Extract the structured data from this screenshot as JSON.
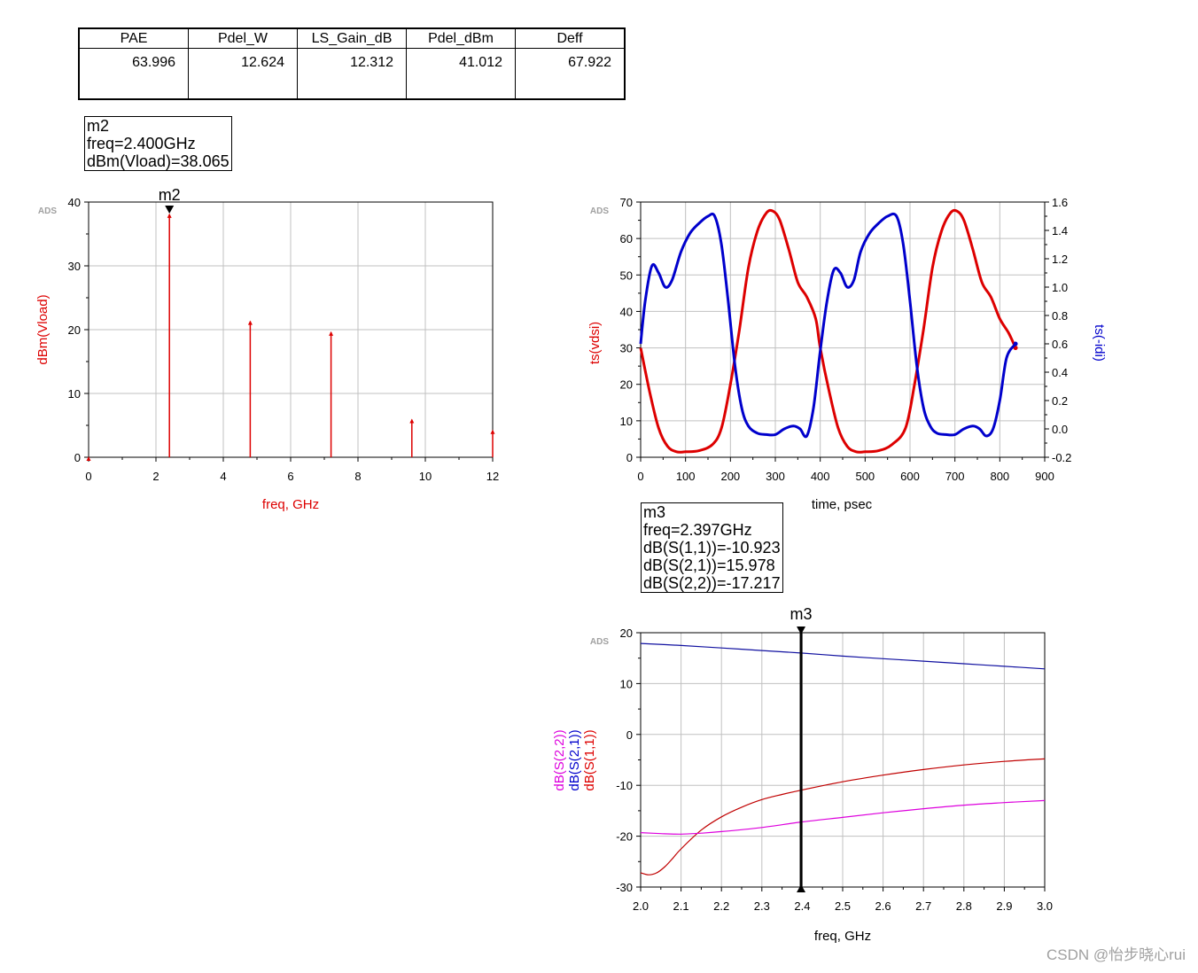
{
  "results_table": {
    "headers": [
      "PAE",
      "Pdel_W",
      "LS_Gain_dB",
      "Pdel_dBm",
      "Deff"
    ],
    "values": [
      "63.996",
      "12.624",
      "12.312",
      "41.012",
      "67.922"
    ]
  },
  "marker_m2": {
    "name": "m2",
    "lines": [
      "m2",
      "freq=2.400GHz",
      "dBm(Vload)=38.065"
    ]
  },
  "marker_m3": {
    "name": "m3",
    "lines": [
      "m3",
      "freq=2.397GHz",
      "dB(S(1,1))=-10.923",
      "dB(S(2,1))=15.978",
      "dB(S(2,2))=-17.217"
    ]
  },
  "watermark": "CSDN @怡步晓心rui",
  "colors": {
    "red": "#dd0000",
    "blue": "#0000cc",
    "magenta": "#dd00dd",
    "grid": "#c0c0c0",
    "darkred": "#c00000",
    "navy": "#1010a0"
  },
  "chart_data": [
    {
      "type": "stem",
      "badge": "ADS",
      "xlabel": "freq, GHz",
      "ylabel": "dBm(Vload)",
      "xlim": [
        0,
        12
      ],
      "ylim": [
        0,
        40
      ],
      "xticks": [
        "0",
        "2",
        "4",
        "6",
        "8",
        "10",
        "12"
      ],
      "yticks": [
        "0",
        "10",
        "20",
        "30",
        "40"
      ],
      "x": [
        0,
        2.4,
        4.8,
        7.2,
        9.6,
        12
      ],
      "values": [
        0,
        38.065,
        21.3,
        19.6,
        5.9,
        4.2
      ],
      "marker": {
        "label": "m2",
        "x": 2.4
      },
      "series_color": "#dd0000"
    },
    {
      "type": "line",
      "badge": "ADS",
      "xlabel": "time, psec",
      "ylabel_left": "ts(vdsi)",
      "ylabel_right": "ts(-idi)",
      "xlim": [
        0,
        900
      ],
      "ylim_left": [
        0,
        70
      ],
      "ylim_right": [
        -0.2,
        1.6
      ],
      "xticks": [
        "0",
        "100",
        "200",
        "300",
        "400",
        "500",
        "600",
        "700",
        "800",
        "900"
      ],
      "yticks_left": [
        "0",
        "10",
        "20",
        "30",
        "40",
        "50",
        "60",
        "70"
      ],
      "yticks_right": [
        "-0.2",
        "0.0",
        "0.2",
        "0.4",
        "0.6",
        "0.8",
        "1.0",
        "1.2",
        "1.4",
        "1.6"
      ],
      "series": [
        {
          "axis": "left",
          "color": "#dd0000",
          "x": [
            0,
            20,
            40,
            60,
            80,
            100,
            130,
            160,
            180,
            200,
            220,
            240,
            260,
            280,
            295,
            310,
            330,
            350,
            370,
            390,
            400,
            420,
            440,
            460,
            480,
            500,
            530,
            560,
            590,
            610,
            630,
            650,
            670,
            690,
            705,
            720,
            740,
            760,
            780,
            800,
            820,
            835
          ],
          "values": [
            30,
            18,
            8,
            3,
            1.5,
            1.5,
            1.8,
            3.5,
            8,
            20,
            35,
            52,
            62,
            67,
            67.5,
            65,
            57,
            48,
            44,
            38,
            30,
            18,
            8,
            3,
            1.5,
            1.5,
            1.8,
            3.5,
            8,
            20,
            35,
            52,
            62,
            67,
            67.5,
            65,
            57,
            48,
            44,
            38,
            34,
            30
          ]
        },
        {
          "axis": "right",
          "color": "#0000cc",
          "x": [
            0,
            10,
            25,
            40,
            55,
            70,
            90,
            110,
            130,
            150,
            165,
            180,
            195,
            210,
            225,
            240,
            260,
            280,
            300,
            320,
            340,
            355,
            370,
            385,
            400,
            415,
            430,
            445,
            460,
            475,
            490,
            510,
            530,
            550,
            570,
            585,
            600,
            615,
            630,
            645,
            660,
            680,
            700,
            720,
            740,
            755,
            770,
            785,
            800,
            815,
            835
          ],
          "values": [
            0.6,
            0.9,
            1.15,
            1.1,
            1.0,
            1.05,
            1.25,
            1.38,
            1.45,
            1.5,
            1.5,
            1.3,
            0.9,
            0.45,
            0.15,
            0.02,
            -0.03,
            -0.04,
            -0.04,
            0.0,
            0.02,
            0.0,
            -0.05,
            0.15,
            0.55,
            0.9,
            1.12,
            1.1,
            1.0,
            1.05,
            1.25,
            1.38,
            1.45,
            1.5,
            1.5,
            1.3,
            0.9,
            0.45,
            0.15,
            0.02,
            -0.03,
            -0.04,
            -0.04,
            0.0,
            0.02,
            0.0,
            -0.05,
            0.0,
            0.2,
            0.5,
            0.6
          ]
        }
      ]
    },
    {
      "type": "line",
      "badge": "ADS",
      "xlabel": "freq, GHz",
      "ylabel_stack": [
        "dB(S(2,2))",
        "dB(S(2,1))",
        "dB(S(1,1))"
      ],
      "xlim": [
        2.0,
        3.0
      ],
      "ylim": [
        -30,
        20
      ],
      "xticks": [
        "2.0",
        "2.1",
        "2.2",
        "2.3",
        "2.4",
        "2.5",
        "2.6",
        "2.7",
        "2.8",
        "2.9",
        "3.0"
      ],
      "yticks": [
        "-30",
        "-20",
        "-10",
        "0",
        "10",
        "20"
      ],
      "marker": {
        "label": "m3",
        "x": 2.397
      },
      "series": [
        {
          "color": "#1010a0",
          "x": [
            2.0,
            2.1,
            2.2,
            2.3,
            2.4,
            2.5,
            2.6,
            2.7,
            2.8,
            2.9,
            3.0
          ],
          "values": [
            17.9,
            17.5,
            17.0,
            16.5,
            16.0,
            15.4,
            14.9,
            14.4,
            13.9,
            13.4,
            12.9
          ]
        },
        {
          "color": "#c00000",
          "x": [
            2.0,
            2.02,
            2.04,
            2.06,
            2.08,
            2.1,
            2.15,
            2.2,
            2.25,
            2.3,
            2.35,
            2.4,
            2.5,
            2.6,
            2.7,
            2.8,
            2.9,
            3.0
          ],
          "values": [
            -27.2,
            -27.6,
            -27.2,
            -26.0,
            -24.3,
            -22.5,
            -18.8,
            -16.2,
            -14.3,
            -12.8,
            -11.8,
            -10.9,
            -9.3,
            -8.0,
            -6.9,
            -6.0,
            -5.3,
            -4.8
          ]
        },
        {
          "color": "#dd00dd",
          "x": [
            2.0,
            2.05,
            2.1,
            2.15,
            2.2,
            2.3,
            2.4,
            2.5,
            2.6,
            2.7,
            2.8,
            2.9,
            3.0
          ],
          "values": [
            -19.3,
            -19.5,
            -19.6,
            -19.4,
            -19.1,
            -18.3,
            -17.2,
            -16.3,
            -15.4,
            -14.6,
            -13.9,
            -13.4,
            -13.0
          ]
        }
      ]
    }
  ]
}
